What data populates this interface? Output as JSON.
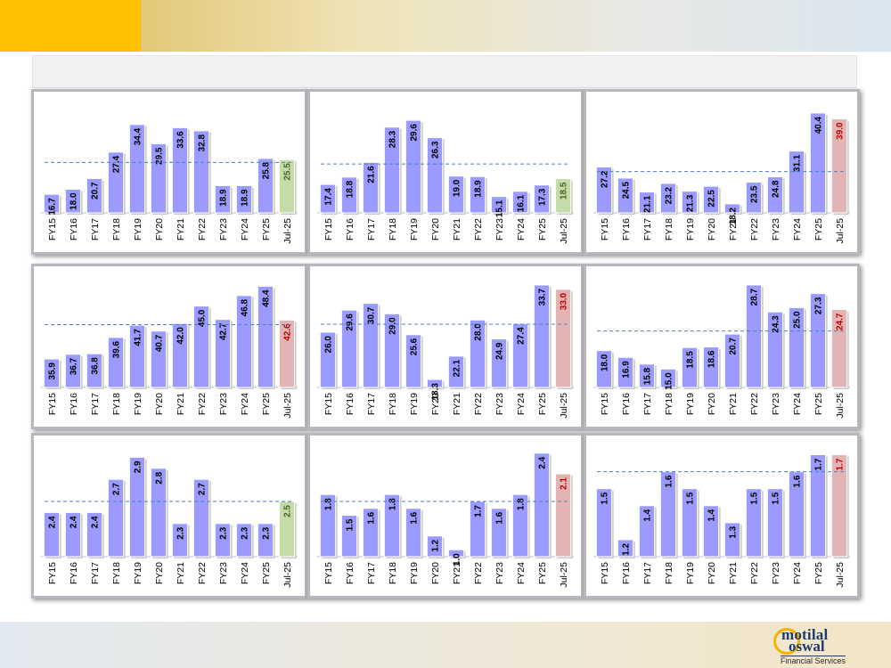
{
  "brand": {
    "logo_line1": "motilal",
    "logo_line2": "oswal",
    "logo_subtitle": "Financial Services",
    "accent_color": "#ffc000"
  },
  "colors": {
    "bar": "#9a9aff",
    "bar_edge": "#6f6fe0",
    "highlight_green": "#c5dca8",
    "highlight_red": "#e3b4b4",
    "label_dark": "#000000",
    "label_red": "#c00000",
    "label_green": "#4f6228",
    "average_line": "#4f81bd"
  },
  "chart_data": [
    {
      "type": "bar",
      "categories": [
        "FY15",
        "FY16",
        "FY17",
        "FY18",
        "FY19",
        "FY20",
        "FY21",
        "FY22",
        "FY23",
        "FY24",
        "FY25",
        "Jul-25"
      ],
      "values": [
        16.7,
        18.0,
        20.7,
        27.4,
        34.4,
        29.5,
        33.6,
        32.8,
        18.9,
        18.9,
        25.8,
        25.5
      ],
      "labels": [
        "16.7",
        "18.0",
        "20.7",
        "27.4",
        "34.4",
        "29.5",
        "33.6",
        "32.8",
        "18.9",
        "18.9",
        "25.8",
        "25.5"
      ],
      "last_highlight": "green",
      "average": 24.8,
      "ylim": [
        12,
        40
      ]
    },
    {
      "type": "bar",
      "categories": [
        "FY15",
        "FY16",
        "FY17",
        "FY18",
        "FY19",
        "FY20",
        "FY21",
        "FY22",
        "FY23",
        "FY24",
        "FY25",
        "Jul-25"
      ],
      "values": [
        17.4,
        18.8,
        21.6,
        28.3,
        29.6,
        26.3,
        19.0,
        18.9,
        15.1,
        16.1,
        17.3,
        18.5
      ],
      "labels": [
        "17.4",
        "18.8",
        "21.6",
        "28.3",
        "29.6",
        "26.3",
        "19.0",
        "18.9",
        "15.1",
        "16.1",
        "17.3",
        "18.5"
      ],
      "last_highlight": "green",
      "average": 21.3,
      "ylim": [
        12,
        33
      ]
    },
    {
      "type": "bar",
      "categories": [
        "FY15",
        "FY16",
        "FY17",
        "FY18",
        "FY19",
        "FY20",
        "FY21",
        "FY22",
        "FY23",
        "FY24",
        "FY25",
        "Jul-25"
      ],
      "values": [
        27.2,
        24.5,
        21.1,
        23.2,
        21.3,
        22.5,
        18.2,
        23.5,
        24.8,
        31.1,
        40.4,
        39.0
      ],
      "labels": [
        "27.2",
        "24.5",
        "21.1",
        "23.2",
        "21.3",
        "22.5",
        "18.2",
        "23.5",
        "24.8",
        "31.1",
        "40.4",
        "39.0"
      ],
      "last_highlight": "red",
      "average": 26.1,
      "ylim": [
        16,
        43
      ]
    },
    {
      "type": "bar",
      "categories": [
        "FY15",
        "FY16",
        "FY17",
        "FY18",
        "FY19",
        "FY20",
        "FY21",
        "FY22",
        "FY23",
        "FY24",
        "FY25",
        "Jul-25"
      ],
      "values": [
        35.9,
        36.7,
        36.8,
        39.6,
        41.7,
        40.7,
        42.0,
        45.0,
        42.7,
        46.8,
        48.4,
        42.6
      ],
      "labels": [
        "35.9",
        "36.7",
        "36.8",
        "39.6",
        "41.7",
        "40.7",
        "42.0",
        "45.0",
        "42.7",
        "46.8",
        "48.4",
        "42.6"
      ],
      "last_highlight": "red",
      "average": 41.8,
      "ylim": [
        31,
        50
      ]
    },
    {
      "type": "bar",
      "categories": [
        "FY15",
        "FY16",
        "FY17",
        "FY18",
        "FY19",
        "FY20",
        "FY21",
        "FY22",
        "FY23",
        "FY24",
        "FY25",
        "Jul-25"
      ],
      "values": [
        26.0,
        29.6,
        30.7,
        29.0,
        25.6,
        18.3,
        22.1,
        28.0,
        24.9,
        27.4,
        33.7,
        33.0
      ],
      "labels": [
        "26.0",
        "29.6",
        "30.7",
        "29.0",
        "25.6",
        "18.3",
        "22.1",
        "28.0",
        "24.9",
        "27.4",
        "33.7",
        "33.0"
      ],
      "last_highlight": "red",
      "average": 27.3,
      "ylim": [
        17,
        35
      ]
    },
    {
      "type": "bar",
      "categories": [
        "FY15",
        "FY16",
        "FY17",
        "FY18",
        "FY19",
        "FY20",
        "FY21",
        "FY22",
        "FY23",
        "FY24",
        "FY25",
        "Jul-25"
      ],
      "values": [
        18.0,
        16.9,
        15.8,
        15.0,
        18.5,
        18.6,
        20.7,
        28.7,
        24.3,
        25.0,
        27.3,
        24.7
      ],
      "labels": [
        "18.0",
        "16.9",
        "15.8",
        "15.0",
        "18.5",
        "18.6",
        "20.7",
        "28.7",
        "24.3",
        "25.0",
        "27.3",
        "24.7"
      ],
      "last_highlight": "red",
      "average": 21.2,
      "ylim": [
        12,
        30
      ]
    },
    {
      "type": "bar",
      "categories": [
        "FY15",
        "FY16",
        "FY17",
        "FY18",
        "FY19",
        "FY20",
        "FY21",
        "FY22",
        "FY23",
        "FY24",
        "FY25",
        "Jul-25"
      ],
      "values": [
        2.4,
        2.4,
        2.4,
        2.7,
        2.9,
        2.8,
        2.3,
        2.7,
        2.3,
        2.3,
        2.3,
        2.5
      ],
      "labels": [
        "2.4",
        "2.4",
        "2.4",
        "2.7",
        "2.9",
        "2.8",
        "2.3",
        "2.7",
        "2.3",
        "2.3",
        "2.3",
        "2.5"
      ],
      "last_highlight": "green",
      "average": 2.5,
      "ylim": [
        2.0,
        3.0
      ]
    },
    {
      "type": "bar",
      "categories": [
        "FY15",
        "FY16",
        "FY17",
        "FY18",
        "FY19",
        "FY20",
        "FY21",
        "FY22",
        "FY23",
        "FY24",
        "FY25",
        "Jul-25"
      ],
      "values": [
        1.8,
        1.5,
        1.6,
        1.8,
        1.6,
        1.2,
        1.0,
        1.7,
        1.6,
        1.8,
        2.4,
        2.1
      ],
      "labels": [
        "1.8",
        "1.5",
        "1.6",
        "1.8",
        "1.6",
        "1.2",
        "1.0",
        "1.7",
        "1.6",
        "1.8",
        "2.4",
        "2.1"
      ],
      "last_highlight": "red",
      "average": 1.7,
      "ylim": [
        0.9,
        2.5
      ]
    },
    {
      "type": "bar",
      "categories": [
        "FY15",
        "FY16",
        "FY17",
        "FY18",
        "FY19",
        "FY20",
        "FY21",
        "FY22",
        "FY23",
        "FY24",
        "FY25",
        "Jul-25"
      ],
      "values": [
        1.5,
        1.2,
        1.4,
        1.6,
        1.5,
        1.4,
        1.3,
        1.5,
        1.5,
        1.6,
        1.7,
        1.7
      ],
      "labels": [
        "1.5",
        "1.2",
        "1.4",
        "1.6",
        "1.5",
        "1.4",
        "1.3",
        "1.5",
        "1.5",
        "1.6",
        "1.7",
        "1.7"
      ],
      "last_highlight": "red",
      "average": 1.6,
      "ylim": [
        1.1,
        1.75
      ]
    }
  ]
}
